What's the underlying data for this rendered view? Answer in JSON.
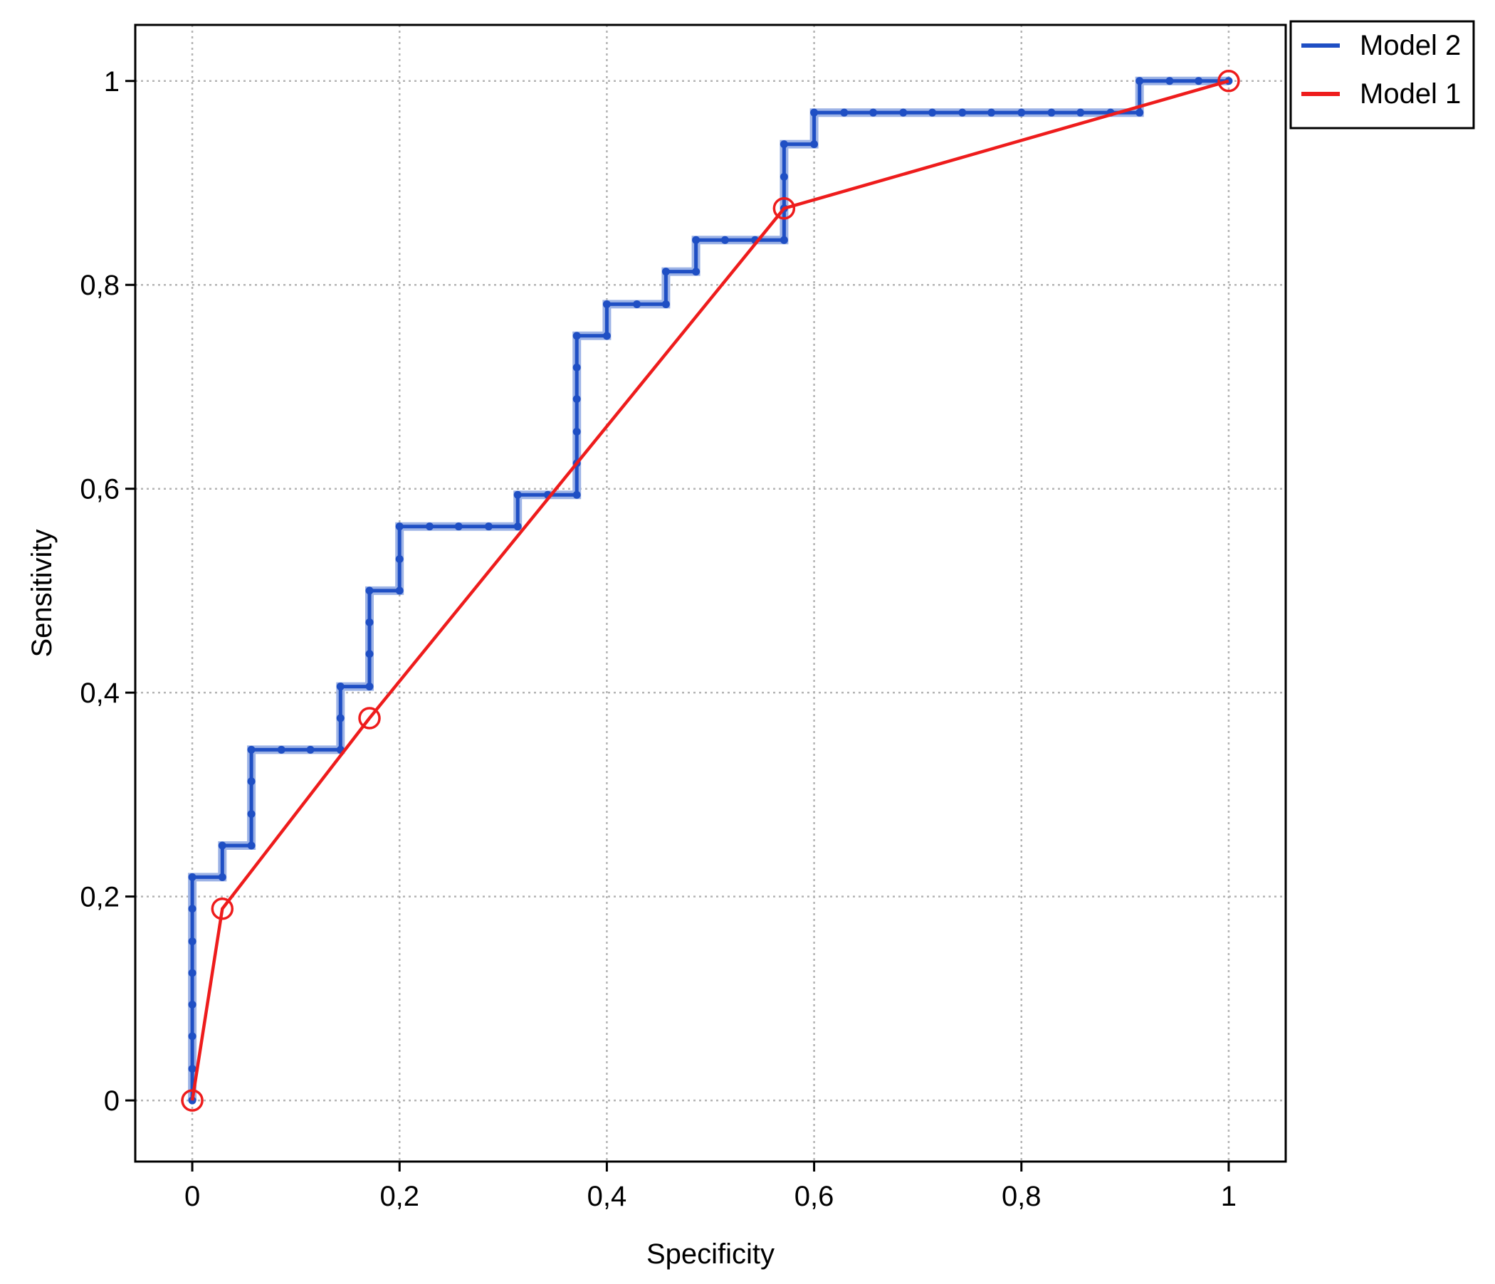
{
  "chart_data": {
    "type": "line",
    "xlabel": "Specificity",
    "ylabel": "Sensitivity",
    "xlim": [
      -0.055,
      1.055
    ],
    "ylim": [
      -0.06,
      1.055
    ],
    "x_ticks": [
      {
        "value": 0,
        "label": "0"
      },
      {
        "value": 0.2,
        "label": "0,2"
      },
      {
        "value": 0.4,
        "label": "0,4"
      },
      {
        "value": 0.6,
        "label": "0,6"
      },
      {
        "value": 0.8,
        "label": "0,8"
      },
      {
        "value": 1,
        "label": "1"
      }
    ],
    "y_ticks": [
      {
        "value": 0,
        "label": "0"
      },
      {
        "value": 0.2,
        "label": "0,2"
      },
      {
        "value": 0.4,
        "label": "0,4"
      },
      {
        "value": 0.6,
        "label": "0,6"
      },
      {
        "value": 0.8,
        "label": "0,8"
      },
      {
        "value": 1,
        "label": "1"
      }
    ],
    "grid": true,
    "legend_position": "top-right, outside plot area",
    "series": [
      {
        "name": "Model 2",
        "color": "#1f4fc4",
        "marker": "small-dot",
        "step": true,
        "x": [
          0,
          0,
          0,
          0,
          0,
          0,
          0,
          0,
          0.029,
          0.029,
          0.057,
          0.057,
          0.057,
          0.057,
          0.086,
          0.114,
          0.143,
          0.143,
          0.143,
          0.171,
          0.171,
          0.171,
          0.171,
          0.2,
          0.2,
          0.2,
          0.229,
          0.257,
          0.286,
          0.314,
          0.314,
          0.343,
          0.371,
          0.371,
          0.371,
          0.371,
          0.371,
          0.371,
          0.4,
          0.4,
          0.429,
          0.457,
          0.457,
          0.486,
          0.486,
          0.514,
          0.543,
          0.571,
          0.571,
          0.571,
          0.571,
          0.6,
          0.6,
          0.629,
          0.657,
          0.686,
          0.714,
          0.743,
          0.771,
          0.8,
          0.829,
          0.857,
          0.886,
          0.914,
          0.914,
          0.943,
          0.971,
          1
        ],
        "y": [
          0,
          0.031,
          0.063,
          0.094,
          0.125,
          0.156,
          0.188,
          0.219,
          0.219,
          0.25,
          0.25,
          0.281,
          0.313,
          0.344,
          0.344,
          0.344,
          0.344,
          0.375,
          0.406,
          0.406,
          0.438,
          0.469,
          0.5,
          0.5,
          0.531,
          0.563,
          0.563,
          0.563,
          0.563,
          0.563,
          0.594,
          0.594,
          0.594,
          0.625,
          0.656,
          0.688,
          0.719,
          0.75,
          0.75,
          0.781,
          0.781,
          0.781,
          0.813,
          0.813,
          0.844,
          0.844,
          0.844,
          0.844,
          0.875,
          0.906,
          0.938,
          0.938,
          0.969,
          0.969,
          0.969,
          0.969,
          0.969,
          0.969,
          0.969,
          0.969,
          0.969,
          0.969,
          0.969,
          0.969,
          1,
          1,
          1,
          1
        ]
      },
      {
        "name": "Model 1",
        "color": "#ee1c1c",
        "marker": "open-circle",
        "step": false,
        "x": [
          0,
          0.029,
          0.171,
          0.571,
          1
        ],
        "y": [
          0,
          0.188,
          0.375,
          0.875,
          1
        ]
      }
    ]
  }
}
